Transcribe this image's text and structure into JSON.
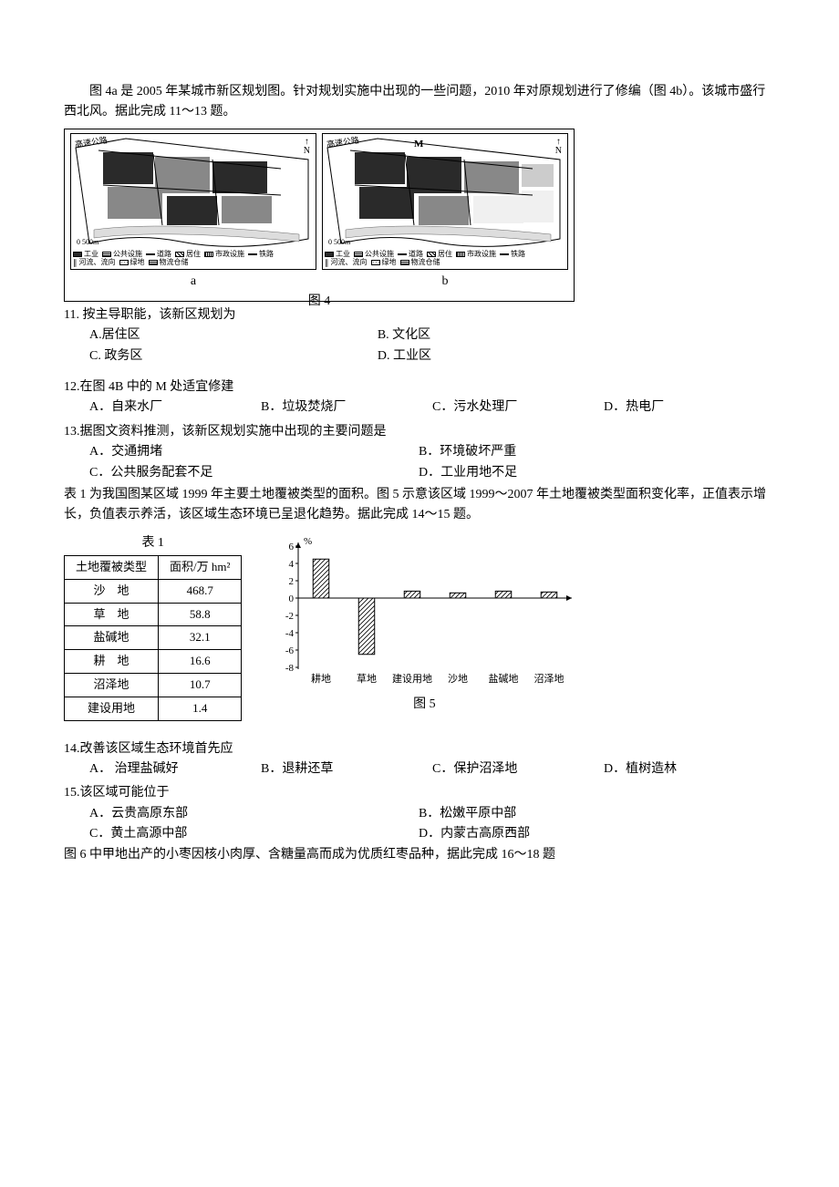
{
  "intro1": "图 4a 是 2005 年某城市新区规划图。针对规划实施中出现的一些问题，2010 年对原规划进行了修编（图 4b）。该城市盛行西北风。据此完成 11～13 题。",
  "fig4": {
    "panel_a_label": "a",
    "panel_b_label": "b",
    "caption": "图 4",
    "legend": {
      "industry": "工业",
      "public": "公共设施",
      "road": "道路",
      "residential": "居住",
      "municipal": "市政设施",
      "railway": "铁路",
      "river": "河流、流向",
      "green": "绿地",
      "logistics": "物流仓储"
    },
    "colors": {
      "industry": "#2a2a2a",
      "residential": "#888888",
      "green": "#f0f0f0",
      "public": "#cccccc",
      "border": "#000000"
    },
    "north": "N",
    "scale": "0    500m",
    "highway": "高速公路",
    "m_label": "M"
  },
  "q11": {
    "stem": "11. 按主导职能，该新区规划为",
    "A": "A.居住区",
    "B": "B. 文化区",
    "C": "C. 政务区",
    "D": "D. 工业区"
  },
  "q12": {
    "stem": "12.在图 4B 中的 M 处适宜修建",
    "A": "A．自来水厂",
    "B": "B．垃圾焚烧厂",
    "C": "C．污水处理厂",
    "D": "D．热电厂"
  },
  "q13": {
    "stem": "13.据图文资料推测，该新区规划实施中出现的主要问题是",
    "A": "A．交通拥堵",
    "B": "B．环境破坏严重",
    "C": "C．公共服务配套不足",
    "D": "D．工业用地不足"
  },
  "intro2": "表 1 为我国图某区域 1999 年主要土地覆被类型的面积。图 5 示意该区域 1999～2007 年土地覆被类型面积变化率，正值表示增长，负值表示养活，该区域生态环境已呈退化趋势。据此完成 14～15 题。",
  "table1": {
    "title": "表 1",
    "head_type": "土地覆被类型",
    "head_area": "面积/万 hm²",
    "rows": [
      {
        "type": "沙　地",
        "area": "468.7"
      },
      {
        "type": "草　地",
        "area": "58.8"
      },
      {
        "type": "盐碱地",
        "area": "32.1"
      },
      {
        "type": "耕　地",
        "area": "16.6"
      },
      {
        "type": "沼泽地",
        "area": "10.7"
      },
      {
        "type": "建设用地",
        "area": "1.4"
      }
    ]
  },
  "fig5": {
    "caption": "图 5",
    "y_label": "%",
    "ylim": [
      -8,
      6
    ],
    "ytick_step": 2,
    "categories": [
      "耕地",
      "草地",
      "建设用地",
      "沙地",
      "盐碱地",
      "沼泽地"
    ],
    "values": [
      4.5,
      -6.5,
      0.8,
      0.6,
      0.8,
      0.7
    ],
    "bar_fill": "#ffffff",
    "bar_hatch_color": "#000000",
    "axis_color": "#000000",
    "background": "#ffffff",
    "label_fontsize": 11
  },
  "q14": {
    "stem": "14.改善该区域生态环境首先应",
    "A": "A． 治理盐碱好",
    "B": "B．退耕还草",
    "C": "C．保护沼泽地",
    "D": "D．植树造林"
  },
  "q15": {
    "stem": "15.该区域可能位于",
    "A": "A．云贵高原东部",
    "B": "B．松嫩平原中部",
    "C": "C．黄土高源中部",
    "D": "D．内蒙古高原西部"
  },
  "intro3": "图 6 中甲地出产的小枣因核小肉厚、含糖量高而成为优质红枣品种，据此完成 16～18 题"
}
